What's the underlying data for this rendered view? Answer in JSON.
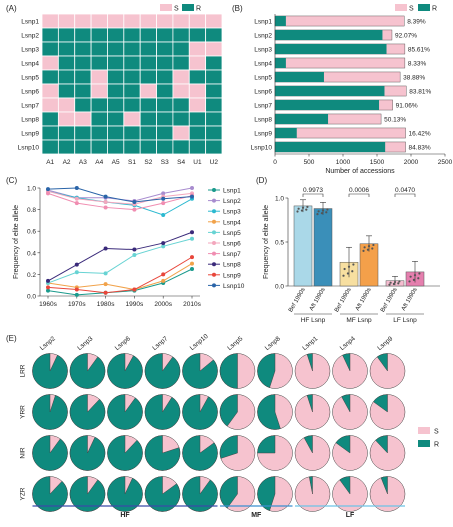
{
  "colors": {
    "S": "#f6c3cf",
    "R": "#0f8a7e",
    "grid_line": "#ffffff",
    "axis": "#333333",
    "line_colors": [
      "#1a9a8c",
      "#a88ccf",
      "#2cb9d0",
      "#f1a24a",
      "#67d3d3",
      "#f3a7bd",
      "#f08db1",
      "#3a2a7a",
      "#e8463a",
      "#2a64a8"
    ],
    "bar_d_fill": [
      "#aad8e8",
      "#3a8fb9",
      "#f7dfa0",
      "#f4a04a",
      "#f5bdd0",
      "#e57fae"
    ],
    "group_lines": {
      "HF": "#3a4aa8",
      "MF": "#3a8fd0",
      "LF": "#6cc3e6"
    }
  },
  "panel_a": {
    "label": "(A)",
    "legend": [
      "S",
      "R"
    ],
    "rows": [
      "Lsnp1",
      "Lsnp2",
      "Lsnp3",
      "Lsnp4",
      "Lsnp5",
      "Lsnp6",
      "Lsnp7",
      "Lsnp8",
      "Lsnp9",
      "Lsnp10"
    ],
    "cols": [
      "A1",
      "A2",
      "A3",
      "A4",
      "A5",
      "S1",
      "S2",
      "S3",
      "S4",
      "U1",
      "U2"
    ],
    "cells": [
      "SSSSSSSSSSS",
      "RRRRRRRRRRR",
      "RRRRRRRRRSS",
      "SRRRRRRRRSR",
      "RRRSRRRRSRR",
      "SRRSRRSRSSR",
      "SSRRRRRRRSR",
      "RSSRRSRRRRR",
      "RRRRRRRRSRR",
      "RRRRRRRRRRR"
    ]
  },
  "panel_b": {
    "label": "(B)",
    "legend": [
      "S",
      "R"
    ],
    "chart_data": {
      "type": "bar",
      "orientation": "horizontal-stacked",
      "categories": [
        "Lsnp1",
        "Lsnp2",
        "Lsnp3",
        "Lsnp4",
        "Lsnp5",
        "Lsnp6",
        "Lsnp7",
        "Lsnp8",
        "Lsnp9",
        "Lsnp10"
      ],
      "totals": [
        1900,
        1720,
        1910,
        1910,
        1840,
        1930,
        1730,
        1560,
        1920,
        1920
      ],
      "r_counts": [
        160,
        1580,
        1640,
        160,
        720,
        1610,
        1530,
        780,
        320,
        1620
      ],
      "pct_labels": [
        "8.39%",
        "92.07%",
        "85.61%",
        "8.33%",
        "38.88%",
        "83.81%",
        "91.06%",
        "50.13%",
        "16.42%",
        "84.83%"
      ],
      "xlim": [
        0,
        2500
      ],
      "xticks": [
        "0",
        "500",
        "1000",
        "1500",
        "2000",
        "2500"
      ],
      "xlabel": "Number of accessions"
    }
  },
  "panel_c": {
    "label": "(C)",
    "chart_data": {
      "type": "line",
      "x": [
        "1960s",
        "1970s",
        "1980s",
        "1990s",
        "2000s",
        "2010s"
      ],
      "ylim": [
        0,
        1.0
      ],
      "yticks": [
        "0.0",
        "0.2",
        "0.4",
        "0.6",
        "0.8",
        "1.0"
      ],
      "ylabel": "Frequency of elite allele",
      "series": [
        {
          "name": "Lsnp1",
          "values": [
            0.05,
            0.01,
            0.03,
            0.05,
            0.12,
            0.25
          ]
        },
        {
          "name": "Lsnp2",
          "values": [
            0.98,
            0.91,
            0.91,
            0.88,
            0.95,
            1.0
          ]
        },
        {
          "name": "Lsnp3",
          "values": [
            0.97,
            0.91,
            0.87,
            0.84,
            0.75,
            0.9
          ]
        },
        {
          "name": "Lsnp4",
          "values": [
            0.12,
            0.08,
            0.11,
            0.06,
            0.14,
            0.3
          ]
        },
        {
          "name": "Lsnp5",
          "values": [
            0.12,
            0.22,
            0.21,
            0.38,
            0.46,
            0.53
          ]
        },
        {
          "name": "Lsnp6",
          "values": [
            0.97,
            0.9,
            0.87,
            0.85,
            0.92,
            0.95
          ]
        },
        {
          "name": "Lsnp7",
          "values": [
            0.95,
            0.86,
            0.82,
            0.8,
            0.86,
            0.93
          ]
        },
        {
          "name": "Lsnp8",
          "values": [
            0.14,
            0.29,
            0.44,
            0.43,
            0.49,
            0.59
          ]
        },
        {
          "name": "Lsnp9",
          "values": [
            0.08,
            0.06,
            0.03,
            0.06,
            0.2,
            0.36
          ]
        },
        {
          "name": "Lsnp10",
          "values": [
            0.99,
            1.0,
            0.92,
            0.87,
            0.9,
            0.92
          ]
        }
      ]
    }
  },
  "panel_d": {
    "label": "(D)",
    "chart_data": {
      "type": "bar",
      "categories": [
        "Bef 1990s",
        "Aft 1990s",
        "Bef 1990s",
        "Aft 1990s",
        "Bef 1990s",
        "Aft 1990s"
      ],
      "values": [
        0.91,
        0.88,
        0.27,
        0.48,
        0.06,
        0.16
      ],
      "errors": [
        0.07,
        0.07,
        0.17,
        0.09,
        0.05,
        0.12
      ],
      "groups": [
        "HF Lsnp",
        "MF Lsnp",
        "LF Lsnp"
      ],
      "pvalues": [
        "0.9973",
        "0.0006",
        "0.0470"
      ],
      "ylim": [
        0,
        1.0
      ],
      "yticks": [
        "0.0",
        "0.5",
        "1.0"
      ],
      "ylabel": "Frequency of elite allele"
    }
  },
  "panel_e": {
    "label": "(E)",
    "columns": [
      "Lsnp2",
      "Lsnp3",
      "Lsnp6",
      "Lsnp7",
      "Lsnp10",
      "Lsnp5",
      "Lsnp8",
      "Lsnp1",
      "Lsnp4",
      "Lsnp9"
    ],
    "rows": [
      "LRR",
      "YRR",
      "NIR",
      "YZR"
    ],
    "legend": [
      "S",
      "R"
    ],
    "groups": [
      {
        "name": "HF",
        "span": [
          0,
          4
        ]
      },
      {
        "name": "MF",
        "span": [
          5,
          6
        ]
      },
      {
        "name": "LF",
        "span": [
          7,
          9
        ]
      }
    ],
    "chart_data": {
      "type": "pie",
      "r_fraction": [
        [
          0.93,
          0.9,
          0.92,
          0.9,
          0.86,
          0.5,
          0.45,
          0.05,
          0.07,
          0.1
        ],
        [
          0.95,
          0.88,
          0.9,
          0.91,
          0.92,
          0.4,
          0.55,
          0.05,
          0.08,
          0.15
        ],
        [
          0.9,
          0.93,
          0.88,
          0.8,
          0.85,
          0.3,
          0.25,
          0.08,
          0.15,
          0.12
        ],
        [
          0.88,
          0.9,
          0.93,
          0.85,
          0.9,
          0.4,
          0.45,
          0.03,
          0.1,
          0.06
        ]
      ]
    }
  }
}
